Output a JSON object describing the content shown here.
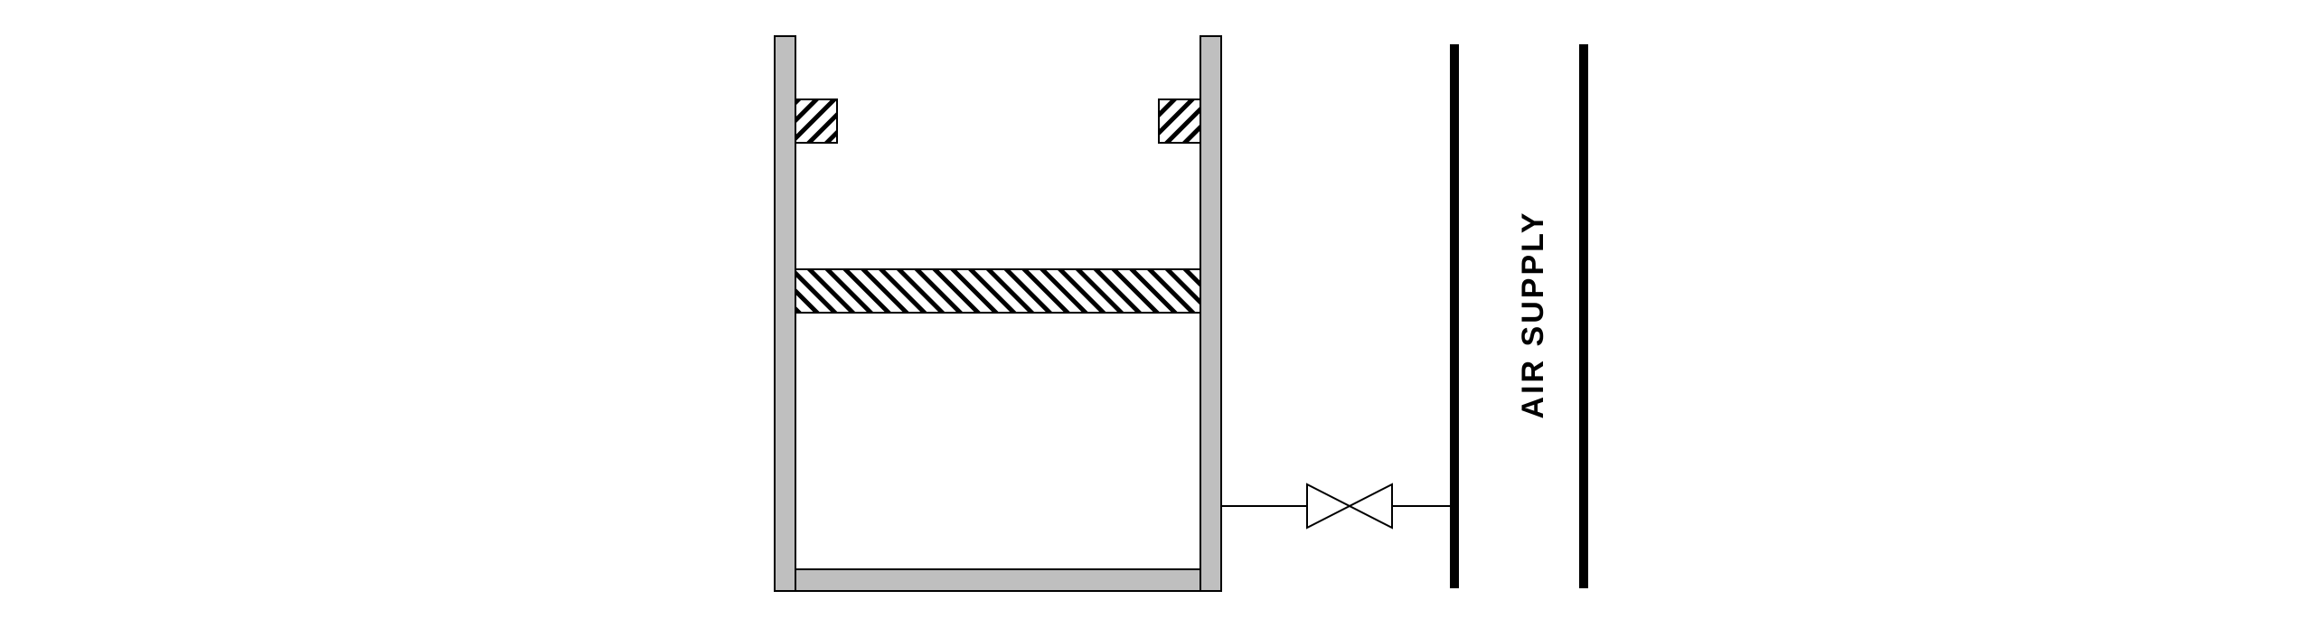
{
  "diagram": {
    "air_supply_label": "AIR SUPPLY"
  },
  "colors": {
    "wall_fill": "#bfbfbf",
    "line": "#000000",
    "background": "#ffffff"
  }
}
